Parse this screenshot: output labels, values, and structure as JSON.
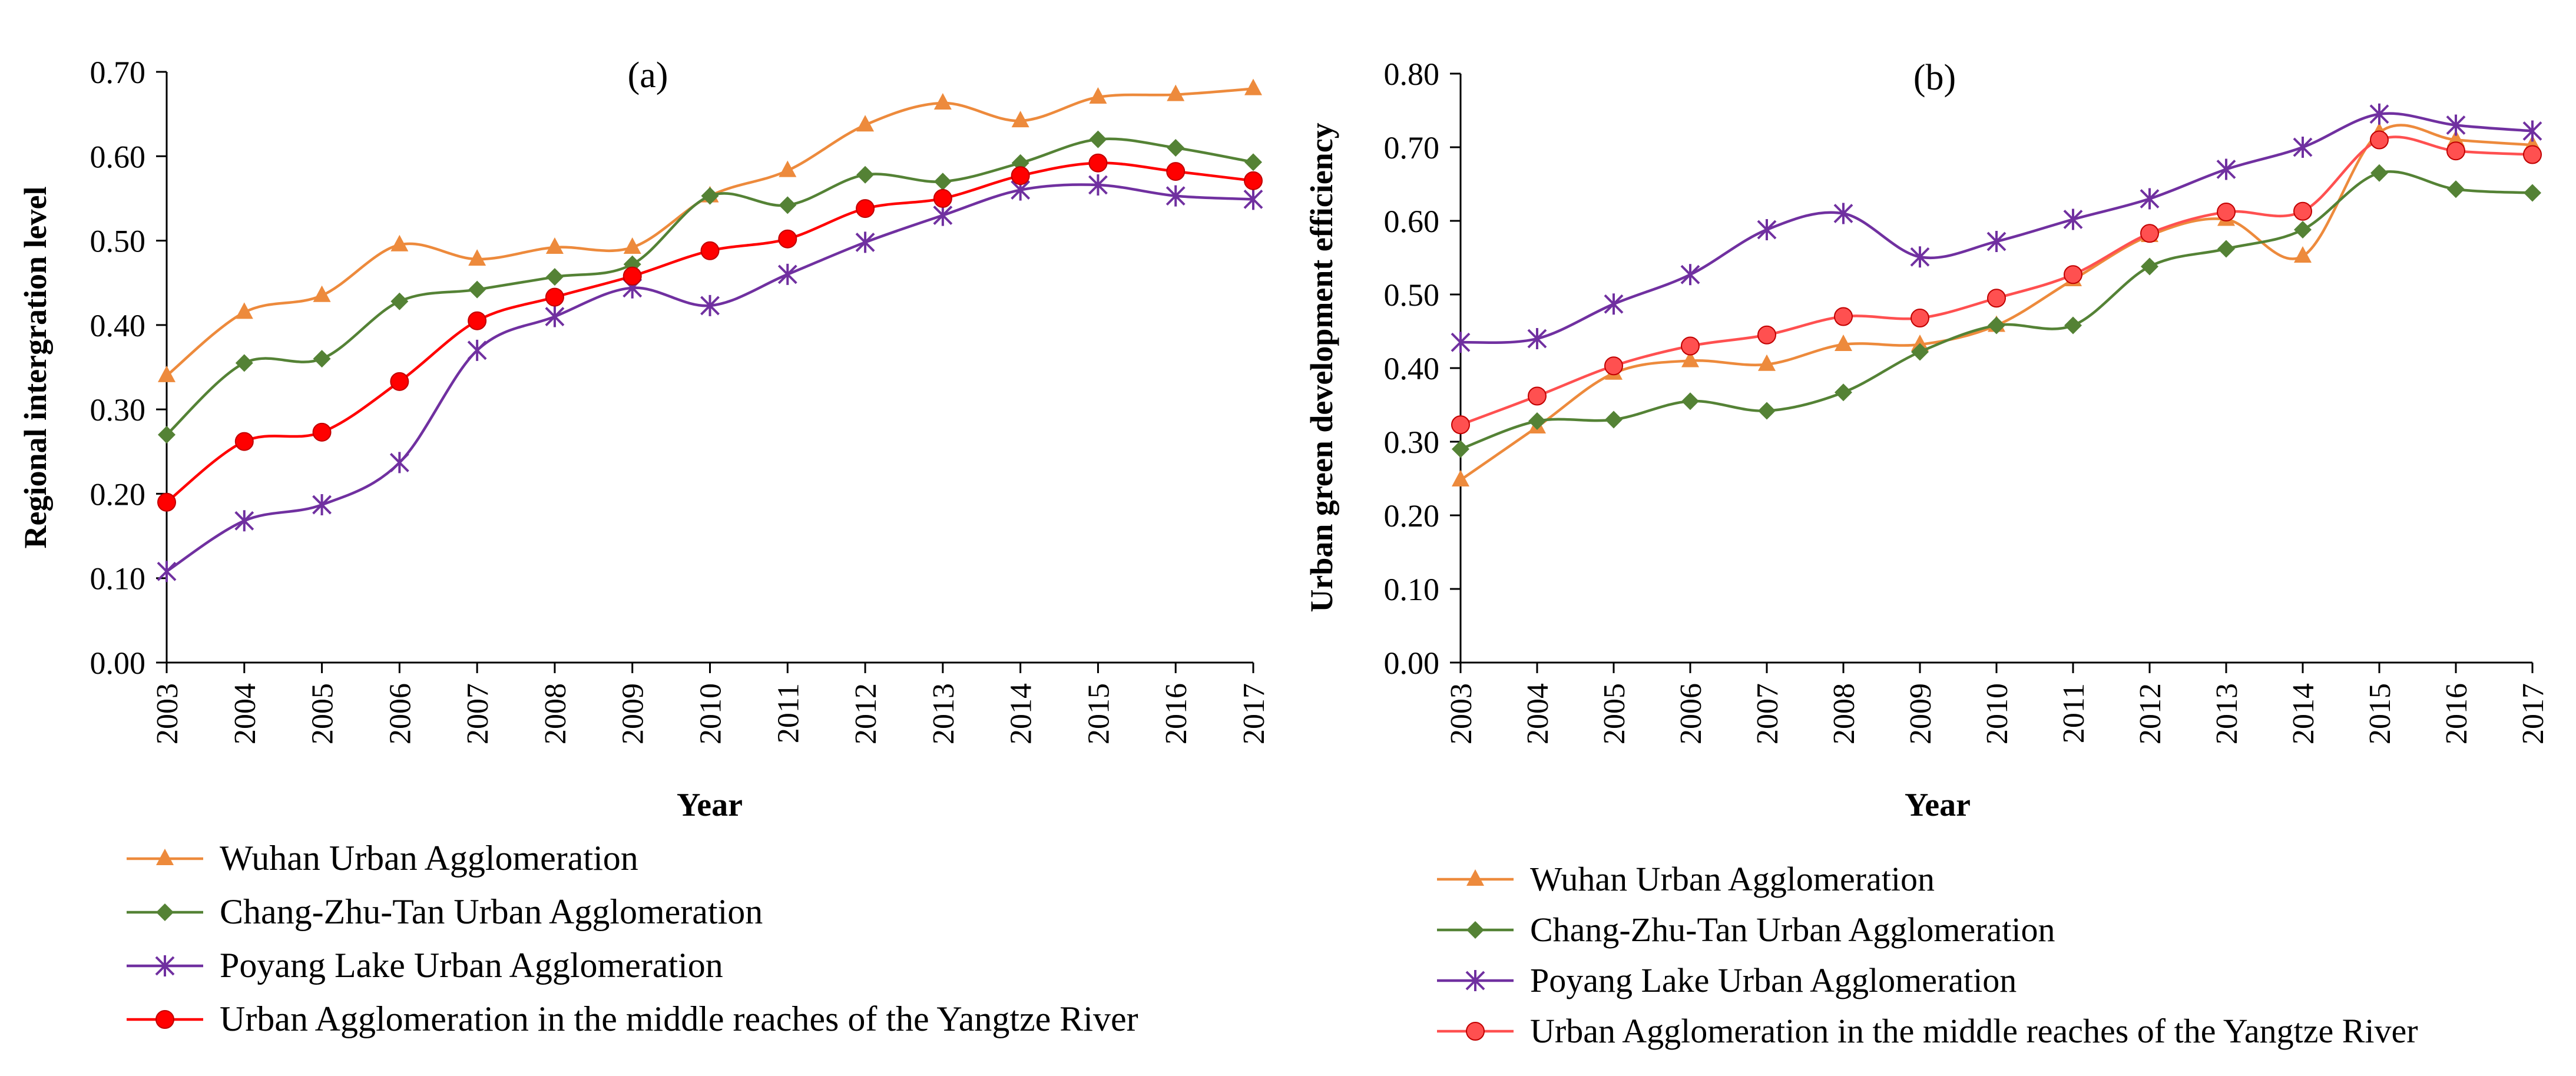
{
  "chart_data": [
    {
      "type": "line",
      "panel_label": "(a)",
      "xlabel": "Year",
      "ylabel": "Regional intergration level",
      "ylim": [
        0,
        0.7
      ],
      "yticks": [
        0,
        0.1,
        0.2,
        0.3,
        0.4,
        0.5,
        0.6,
        0.7
      ],
      "ytick_labels": [
        "0.00",
        "0.10",
        "0.20",
        "0.30",
        "0.40",
        "0.50",
        "0.60",
        "0.70"
      ],
      "categories": [
        "2003",
        "2004",
        "2005",
        "2006",
        "2007",
        "2008",
        "2009",
        "2010",
        "2011",
        "2012",
        "2013",
        "2014",
        "2015",
        "2016",
        "2017"
      ],
      "grid": false,
      "legend_position": "bottom-left",
      "series": [
        {
          "name": "Wuhan Urban Agglomeration",
          "color": "#ed8a3c",
          "marker": "triangle",
          "values": [
            0.34,
            0.415,
            0.435,
            0.495,
            0.478,
            0.492,
            0.492,
            0.553,
            0.583,
            0.637,
            0.663,
            0.642,
            0.67,
            0.673,
            0.68
          ]
        },
        {
          "name": "Chang-Zhu-Tan Urban Agglomeration",
          "color": "#548235",
          "marker": "diamond",
          "values": [
            0.27,
            0.355,
            0.36,
            0.428,
            0.442,
            0.457,
            0.472,
            0.553,
            0.542,
            0.578,
            0.57,
            0.592,
            0.62,
            0.61,
            0.593
          ]
        },
        {
          "name": "Poyang Lake Urban Agglomeration",
          "color": "#7030a0",
          "marker": "asterisk",
          "values": [
            0.108,
            0.168,
            0.187,
            0.237,
            0.37,
            0.41,
            0.444,
            0.423,
            0.46,
            0.498,
            0.53,
            0.56,
            0.566,
            0.553,
            0.549
          ]
        },
        {
          "name": "Urban Agglomeration in the middle reaches of the Yangtze River",
          "color": "#ff0000",
          "marker": "circle",
          "values": [
            0.19,
            0.262,
            0.273,
            0.333,
            0.405,
            0.433,
            0.458,
            0.488,
            0.502,
            0.538,
            0.55,
            0.577,
            0.592,
            0.582,
            0.571
          ]
        }
      ]
    },
    {
      "type": "line",
      "panel_label": "(b)",
      "xlabel": "Year",
      "ylabel": "Urban green development efficiency",
      "ylim": [
        0,
        0.8
      ],
      "yticks": [
        0,
        0.1,
        0.2,
        0.3,
        0.4,
        0.5,
        0.6,
        0.7,
        0.8
      ],
      "ytick_labels": [
        "0.00",
        "0.10",
        "0.20",
        "0.30",
        "0.40",
        "0.50",
        "0.60",
        "0.70",
        "0.80"
      ],
      "categories": [
        "2003",
        "2004",
        "2005",
        "2006",
        "2007",
        "2008",
        "2009",
        "2010",
        "2011",
        "2012",
        "2013",
        "2014",
        "2015",
        "2016",
        "2017"
      ],
      "grid": false,
      "legend_position": "bottom-left",
      "series": [
        {
          "name": "Wuhan Urban Agglomeration",
          "color": "#ed8a3c",
          "marker": "triangle",
          "values": [
            0.248,
            0.32,
            0.393,
            0.41,
            0.405,
            0.432,
            0.432,
            0.458,
            0.52,
            0.58,
            0.602,
            0.552,
            0.72,
            0.71,
            0.703
          ]
        },
        {
          "name": "Chang-Zhu-Tan Urban Agglomeration",
          "color": "#548235",
          "marker": "diamond",
          "values": [
            0.29,
            0.328,
            0.33,
            0.355,
            0.342,
            0.367,
            0.422,
            0.458,
            0.458,
            0.538,
            0.562,
            0.588,
            0.665,
            0.643,
            0.638
          ]
        },
        {
          "name": "Poyang Lake Urban Agglomeration",
          "color": "#7030a0",
          "marker": "asterisk",
          "values": [
            0.435,
            0.44,
            0.487,
            0.527,
            0.588,
            0.61,
            0.551,
            0.572,
            0.602,
            0.63,
            0.67,
            0.7,
            0.745,
            0.73,
            0.722
          ]
        },
        {
          "name": "Urban Agglomeration in the middle reaches of the Yangtze River",
          "color": "#ff5050",
          "marker": "circle",
          "values": [
            0.323,
            0.362,
            0.403,
            0.43,
            0.445,
            0.47,
            0.468,
            0.495,
            0.527,
            0.583,
            0.612,
            0.613,
            0.71,
            0.695,
            0.69
          ]
        }
      ]
    }
  ]
}
